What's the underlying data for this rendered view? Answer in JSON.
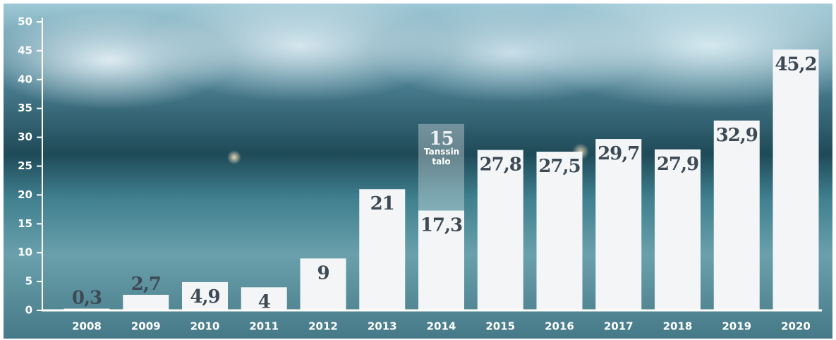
{
  "chart_data": {
    "type": "stacked_bar",
    "categories": [
      "2008",
      "2009",
      "2010",
      "2011",
      "2012",
      "2013",
      "2014",
      "2015",
      "2016",
      "2017",
      "2018",
      "2019",
      "2020"
    ],
    "series": [
      {
        "color": "#f3f5f7",
        "values": [
          0.3,
          2.7,
          4.9,
          4,
          9,
          21,
          17.3,
          27.8,
          27.5,
          29.7,
          27.9,
          32.9,
          45.2
        ],
        "value_labels": [
          "0,3",
          "2,7",
          "4,9",
          "4",
          "9",
          "21",
          "17,3",
          "27,8",
          "27,5",
          "29,7",
          "27,9",
          "32,9",
          "45,2"
        ]
      },
      {
        "name": "Tanssin talo",
        "color": "rgba(255,255,255,0.32)",
        "values": [
          null,
          null,
          null,
          null,
          null,
          null,
          15,
          null,
          null,
          null,
          null,
          null,
          null
        ],
        "value_labels": [
          null,
          null,
          null,
          null,
          null,
          null,
          "15",
          null,
          null,
          null,
          null,
          null,
          null
        ]
      }
    ],
    "ylim": [
      0,
      50
    ],
    "yticks": [
      0,
      5,
      10,
      15,
      20,
      25,
      30,
      35,
      40,
      45,
      50
    ]
  }
}
